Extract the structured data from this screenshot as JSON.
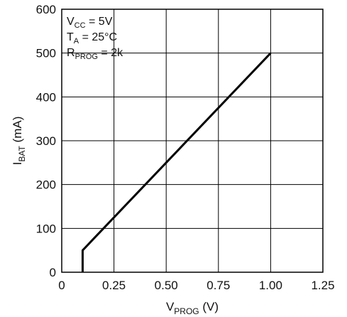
{
  "chart_data": {
    "type": "line",
    "xlabel": {
      "main": "V",
      "sub": "PROG",
      "unit": " (V)"
    },
    "ylabel": {
      "main": "I",
      "sub": "BAT",
      "unit": " (mA)"
    },
    "xlim": [
      0,
      1.25
    ],
    "ylim": [
      0,
      600
    ],
    "grid": true,
    "x_ticks": [
      0,
      0.25,
      0.5,
      0.75,
      1.0,
      1.25
    ],
    "x_tick_labels": [
      "0",
      "0.25",
      "0.50",
      "0.75",
      "1.00",
      "1.25"
    ],
    "y_ticks": [
      0,
      100,
      200,
      300,
      400,
      500,
      600
    ],
    "y_tick_labels": [
      "0",
      "100",
      "200",
      "300",
      "400",
      "500",
      "600"
    ],
    "series": [
      {
        "x": [
          0.1,
          0.1,
          1.0
        ],
        "y": [
          0,
          50,
          500
        ],
        "color": "#000000"
      }
    ],
    "conditions": [
      {
        "main": "V",
        "sub": "CC",
        "rest": " = 5V"
      },
      {
        "main": "T",
        "sub": "A",
        "rest": " = 25°C"
      },
      {
        "main": "R",
        "sub": "PROG",
        "rest": " = 2k"
      }
    ]
  }
}
